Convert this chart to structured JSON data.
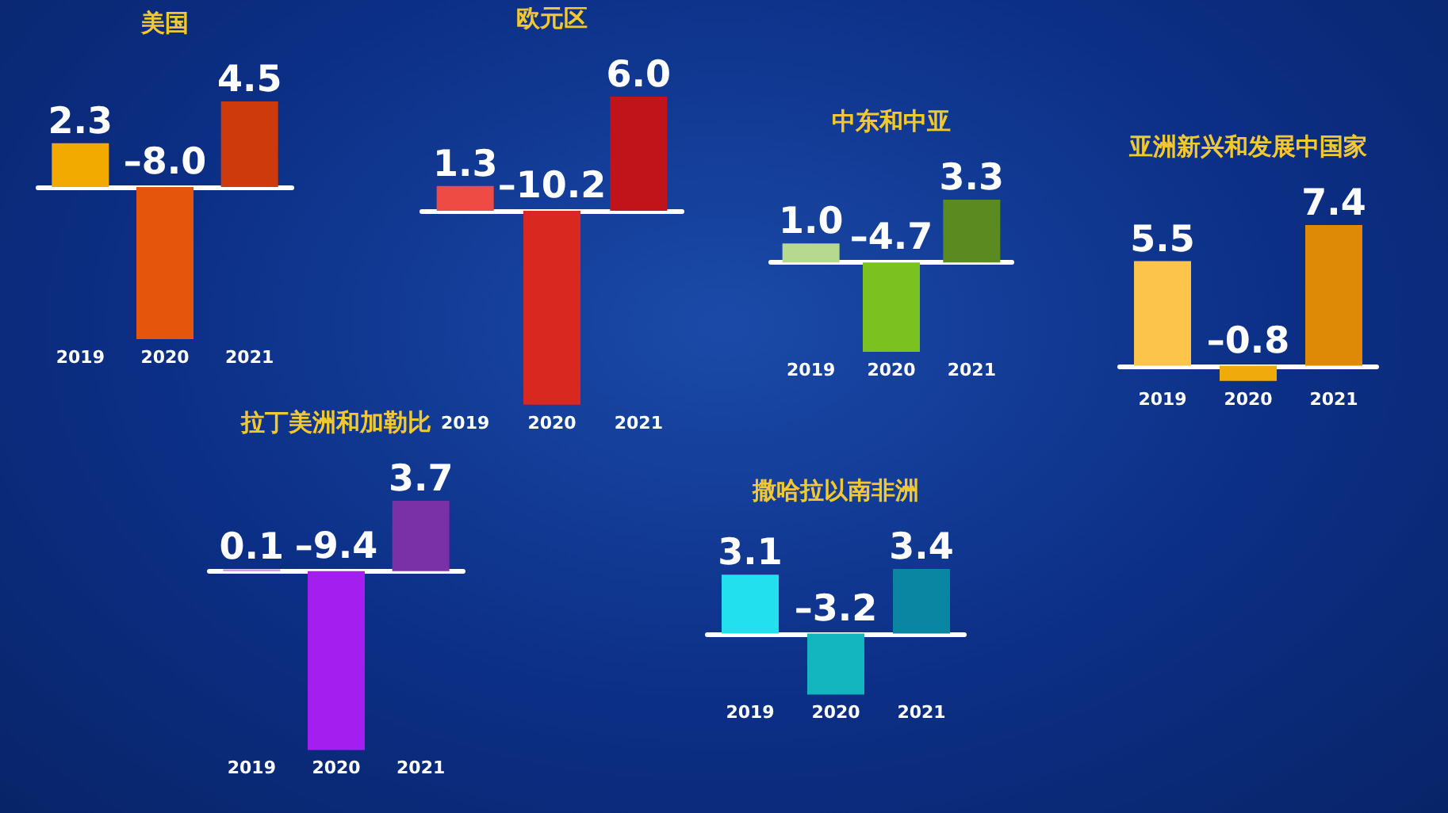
{
  "chart_data": [
    {
      "type": "bar",
      "title": "美国",
      "categories": [
        "2019",
        "2020",
        "2021"
      ],
      "values": [
        2.3,
        -8.0,
        4.5
      ],
      "value_labels": [
        "2.3",
        "–8.0",
        "4.5"
      ],
      "colors": [
        "#f2a900",
        "#e5560c",
        "#cf3a0c"
      ],
      "tick_labels": "x"
    },
    {
      "type": "bar",
      "title": "欧元区",
      "categories": [
        "2019",
        "2020",
        "2021"
      ],
      "values": [
        1.3,
        -10.2,
        6.0
      ],
      "value_labels": [
        "1.3",
        "–10.2",
        "6.0"
      ],
      "colors": [
        "#ef4b45",
        "#d9281f",
        "#c0141a"
      ],
      "tick_labels": "x"
    },
    {
      "type": "bar",
      "title": "中东和中亚",
      "categories": [
        "2019",
        "2020",
        "2021"
      ],
      "values": [
        1.0,
        -4.7,
        3.3
      ],
      "value_labels": [
        "1.0",
        "–4.7",
        "3.3"
      ],
      "colors": [
        "#b5d98e",
        "#7ac220",
        "#5b8a20"
      ],
      "tick_labels": "x"
    },
    {
      "type": "bar",
      "title": "亚洲新兴和发展中国家",
      "categories": [
        "2019",
        "2020",
        "2021"
      ],
      "values": [
        5.5,
        -0.8,
        7.4
      ],
      "value_labels": [
        "5.5",
        "–0.8",
        "7.4"
      ],
      "colors": [
        "#fcc44a",
        "#f0aa0c",
        "#de8a06"
      ],
      "tick_labels": "x"
    },
    {
      "type": "bar",
      "title": "拉丁美洲和加勒比",
      "categories": [
        "2019",
        "2020",
        "2021"
      ],
      "values": [
        0.1,
        -9.4,
        3.7
      ],
      "value_labels": [
        "0.1",
        "–9.4",
        "3.7"
      ],
      "colors": [
        "#c98ee8",
        "#a41ef0",
        "#7a30a6"
      ],
      "tick_labels": "x"
    },
    {
      "type": "bar",
      "title": "撒哈拉以南非洲",
      "categories": [
        "2019",
        "2020",
        "2021"
      ],
      "values": [
        3.1,
        -3.2,
        3.4
      ],
      "value_labels": [
        "3.1",
        "–3.2",
        "3.4"
      ],
      "colors": [
        "#22e0ee",
        "#13b6bf",
        "#0a86a2"
      ],
      "tick_labels": "x"
    }
  ]
}
